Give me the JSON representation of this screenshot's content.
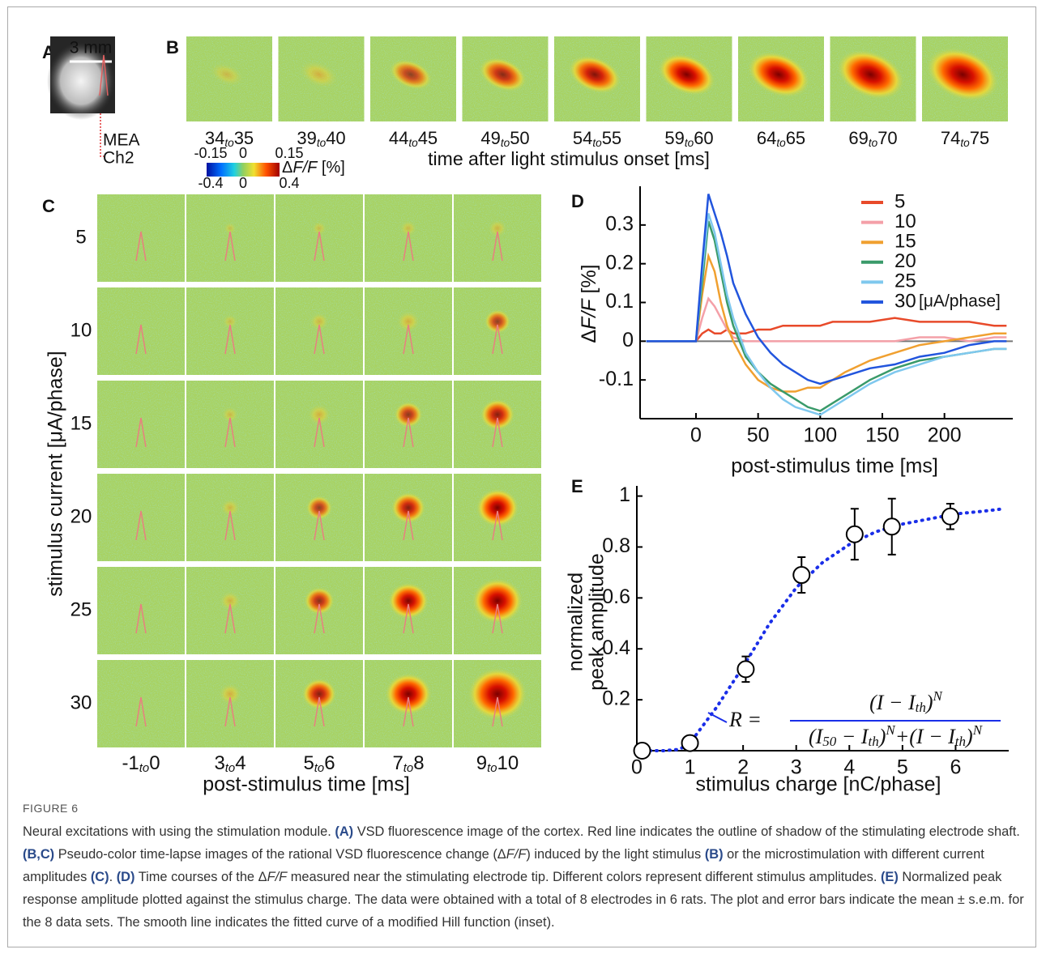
{
  "figure": {
    "range_word": "to",
    "panel_a": {
      "letter": "A",
      "scale_bar": "3 mm",
      "array_label": "MEA",
      "channel_label": "Ch2"
    },
    "panel_b": {
      "letter": "B",
      "times": [
        [
          "34",
          "35"
        ],
        [
          "39",
          "40"
        ],
        [
          "44",
          "45"
        ],
        [
          "49",
          "50"
        ],
        [
          "54",
          "55"
        ],
        [
          "59",
          "60"
        ],
        [
          "64",
          "65"
        ],
        [
          "69",
          "70"
        ],
        [
          "74",
          "75"
        ]
      ],
      "xlabel": "time after light stimulus onset [ms]"
    },
    "colorbar": {
      "label_prefix": "Δ",
      "label_italic": "F/F",
      "label_suffix": " [%]",
      "top_ticks": [
        "-0.15",
        "0",
        "0.15"
      ],
      "bottom_ticks": [
        "-0.4",
        "0",
        "0.4"
      ]
    },
    "panel_c": {
      "letter": "C",
      "rows": [
        "5",
        "10",
        "15",
        "20",
        "25",
        "30"
      ],
      "ylabel": "stimulus current [μA/phase]",
      "cols": [
        [
          "-1",
          "0"
        ],
        [
          "3",
          "4"
        ],
        [
          "5",
          "6"
        ],
        [
          "7",
          "8"
        ],
        [
          "9",
          "10"
        ]
      ],
      "xlabel": "post-stimulus time [ms]"
    }
  },
  "chart_data": [
    {
      "type": "line",
      "letter": "D",
      "ylabel_prefix": "Δ",
      "ylabel_italic": "F/F",
      "ylabel_suffix": " [%]",
      "xlabel": "post-stimulus time [ms]",
      "xlim": [
        -45,
        255
      ],
      "ylim": [
        -0.2,
        0.4
      ],
      "xticks": [
        0,
        50,
        100,
        150,
        200
      ],
      "yticks": [
        -0.1,
        0,
        0.1,
        0.2,
        0.3
      ],
      "zero_line": true,
      "legend_unit": "[μA/phase]",
      "x": [
        -40,
        -30,
        -20,
        -10,
        0,
        5,
        10,
        15,
        20,
        25,
        30,
        40,
        50,
        60,
        70,
        80,
        90,
        100,
        110,
        120,
        140,
        160,
        180,
        200,
        220,
        240,
        250
      ],
      "series": [
        {
          "name": "5",
          "color": "#e84a2a",
          "values": [
            0,
            0,
            0,
            0,
            0,
            0.02,
            0.03,
            0.02,
            0.02,
            0.03,
            0.02,
            0.02,
            0.03,
            0.03,
            0.04,
            0.04,
            0.04,
            0.04,
            0.05,
            0.05,
            0.05,
            0.06,
            0.05,
            0.05,
            0.05,
            0.04,
            0.04
          ]
        },
        {
          "name": "10",
          "color": "#f4a0a8",
          "values": [
            0,
            0,
            0,
            0,
            0,
            0.06,
            0.11,
            0.09,
            0.06,
            0.03,
            0.01,
            0,
            0,
            0,
            0,
            0,
            0,
            0,
            0,
            0,
            0,
            0,
            0.01,
            0.01,
            0,
            0.01,
            0.01
          ]
        },
        {
          "name": "15",
          "color": "#f0a030",
          "values": [
            0,
            0,
            0,
            0,
            0,
            0.12,
            0.22,
            0.18,
            0.1,
            0.04,
            0,
            -0.06,
            -0.1,
            -0.12,
            -0.13,
            -0.13,
            -0.12,
            -0.12,
            -0.1,
            -0.08,
            -0.05,
            -0.03,
            -0.01,
            0,
            0.01,
            0.02,
            0.02
          ]
        },
        {
          "name": "20",
          "color": "#3a9a6a",
          "values": [
            0,
            0,
            0,
            0,
            0,
            0.15,
            0.31,
            0.26,
            0.18,
            0.1,
            0.04,
            -0.04,
            -0.08,
            -0.11,
            -0.13,
            -0.15,
            -0.17,
            -0.18,
            -0.16,
            -0.14,
            -0.1,
            -0.07,
            -0.05,
            -0.04,
            -0.03,
            -0.02,
            -0.02
          ]
        },
        {
          "name": "25",
          "color": "#7fc8ee",
          "values": [
            0,
            0,
            0,
            0,
            0,
            0.18,
            0.33,
            0.28,
            0.2,
            0.12,
            0.06,
            -0.03,
            -0.08,
            -0.12,
            -0.15,
            -0.17,
            -0.18,
            -0.19,
            -0.17,
            -0.15,
            -0.11,
            -0.08,
            -0.06,
            -0.04,
            -0.03,
            -0.02,
            -0.02
          ]
        },
        {
          "name": "30",
          "color": "#2255dd",
          "values": [
            0,
            0,
            0,
            0,
            0,
            0.2,
            0.38,
            0.33,
            0.28,
            0.22,
            0.15,
            0.07,
            0.01,
            -0.03,
            -0.06,
            -0.08,
            -0.1,
            -0.11,
            -0.1,
            -0.09,
            -0.07,
            -0.06,
            -0.04,
            -0.03,
            -0.01,
            0,
            0
          ]
        }
      ]
    },
    {
      "type": "scatter",
      "letter": "E",
      "ylabel": [
        "normalized",
        "peak amplitude"
      ],
      "xlabel": "stimulus charge [nC/phase]",
      "xlim": [
        0,
        7
      ],
      "ylim": [
        0,
        1.04
      ],
      "xticks": [
        0,
        1,
        2,
        3,
        4,
        5,
        6
      ],
      "yticks": [
        0.2,
        0.4,
        0.6,
        0.8,
        1
      ],
      "points": {
        "x": [
          0.1,
          1,
          2.05,
          3.1,
          4.1,
          4.8,
          5.9
        ],
        "values": [
          0,
          0.03,
          0.32,
          0.69,
          0.85,
          0.88,
          0.92
        ],
        "errors": [
          0.01,
          0.02,
          0.05,
          0.07,
          0.1,
          0.11,
          0.05
        ]
      },
      "fit": {
        "color": "#1a2ee8",
        "x": [
          0,
          0.5,
          0.8,
          1,
          1.5,
          2,
          2.5,
          3,
          3.5,
          4,
          4.5,
          5,
          5.5,
          6,
          6.5,
          6.9
        ],
        "values": [
          0,
          0,
          0.005,
          0.03,
          0.17,
          0.33,
          0.5,
          0.64,
          0.74,
          0.81,
          0.86,
          0.89,
          0.91,
          0.93,
          0.94,
          0.95
        ]
      },
      "equation": {
        "lhs": "R =",
        "numerator": [
          "(I − I",
          "th",
          ")",
          "N"
        ],
        "denominator": [
          "(I",
          "50",
          " − I",
          "th",
          ")",
          "N",
          "+(I − I",
          "th",
          ")",
          "N"
        ]
      }
    }
  ],
  "caption": {
    "label": "FIGURE 6",
    "segments": [
      {
        "text": "Neural excitations with using the stimulation module. "
      },
      {
        "text": "(A)",
        "bold": true
      },
      {
        "text": " VSD fluorescence image of the cortex. Red line indicates the outline of shadow of the stimulating electrode shaft. "
      },
      {
        "text": "(B,C)",
        "bold": true
      },
      {
        "text": " Pseudo-color time-lapse images of the rational VSD fluorescence change (Δ"
      },
      {
        "text": "F/F",
        "italic": true
      },
      {
        "text": ") induced by the light stimulus "
      },
      {
        "text": "(B)",
        "bold": true
      },
      {
        "text": " or the microstimulation with different current amplitudes "
      },
      {
        "text": "(C)",
        "bold": true
      },
      {
        "text": ". "
      },
      {
        "text": "(D)",
        "bold": true
      },
      {
        "text": " Time courses of the Δ"
      },
      {
        "text": "F/F",
        "italic": true
      },
      {
        "text": " measured near the stimulating electrode tip. Different colors represent different stimulus amplitudes. "
      },
      {
        "text": "(E)",
        "bold": true
      },
      {
        "text": " Normalized peak response amplitude plotted against the stimulus charge. The data were obtained with a total of 8 electrodes in 6 rats. The plot and error bars indicate the mean ± s.e.m. for the 8 data sets. The smooth line indicates the fitted curve of a modified Hill function (inset)."
      }
    ]
  }
}
